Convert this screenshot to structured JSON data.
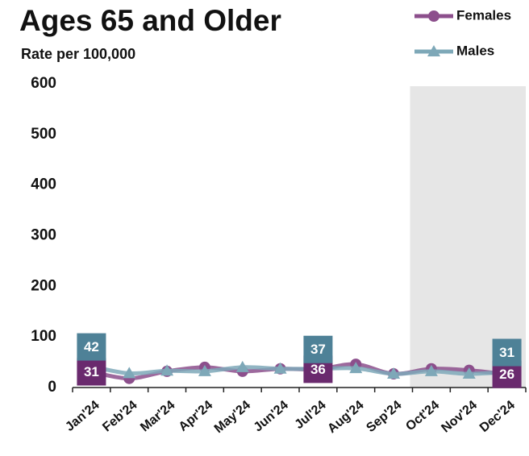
{
  "chart_data": {
    "type": "line",
    "title": "Ages 65 and Older",
    "subtitle": "Rate per 100,000",
    "categories": [
      "Jan'24",
      "Feb'24",
      "Mar'24",
      "Apr'24",
      "May'24",
      "Jun'24",
      "Jul'24",
      "Aug'24",
      "Sep'24",
      "Oct'24",
      "Nov'24",
      "Dec'24"
    ],
    "series": [
      {
        "name": "Females",
        "color": "#8c4f8c",
        "label_color": "#6a2a6e",
        "marker": "circle",
        "label_position": "center",
        "values": [
          31,
          18,
          32,
          40,
          32,
          37,
          36,
          46,
          27,
          37,
          34,
          26
        ],
        "value_labels": [
          "31",
          null,
          null,
          null,
          null,
          null,
          "36",
          null,
          null,
          null,
          null,
          "26"
        ]
      },
      {
        "name": "Males",
        "color": "#7ea8b8",
        "label_color": "#4e8197",
        "marker": "triangle",
        "label_position": "above",
        "values": [
          42,
          28,
          33,
          32,
          40,
          37,
          37,
          38,
          27,
          32,
          27,
          31
        ],
        "value_labels": [
          "42",
          null,
          null,
          null,
          null,
          null,
          "37",
          null,
          null,
          null,
          null,
          "31"
        ]
      }
    ],
    "ylim": [
      0,
      600
    ],
    "yticks": [
      0,
      100,
      200,
      300,
      400,
      500,
      600
    ],
    "highlight_from": "Oct'24",
    "grid": false
  }
}
